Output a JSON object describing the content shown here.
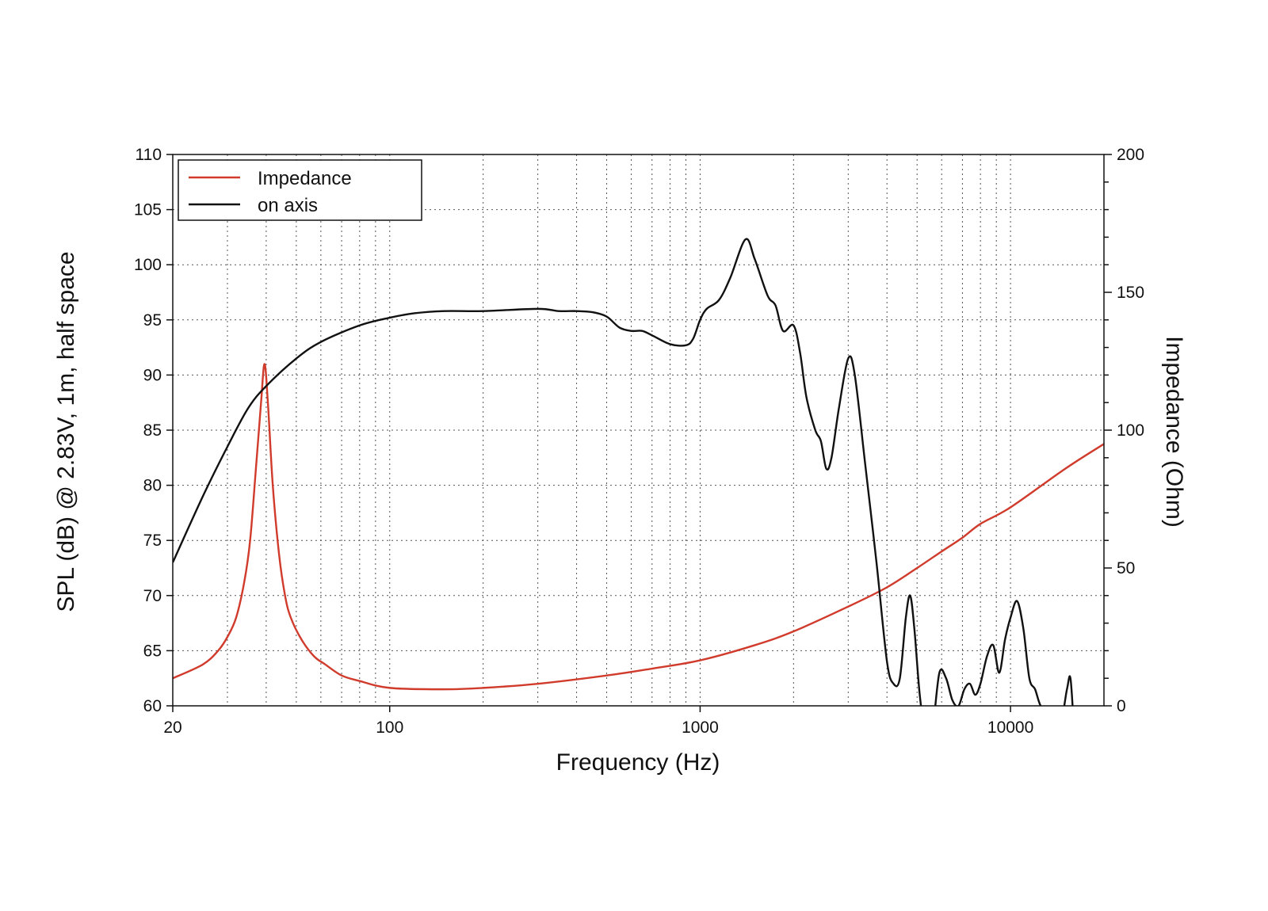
{
  "chart_data": {
    "type": "line",
    "title": "",
    "xlabel": "Frequency (Hz)",
    "ylabel_left": "SPL (dB) @ 2.83V, 1m, half space",
    "ylabel_right": "Impedance (Ohm)",
    "x_scale": "log",
    "xlim": [
      20,
      20000
    ],
    "ylim_left": [
      60,
      110
    ],
    "ylim_right": [
      0,
      200
    ],
    "x_tick_labels": [
      "20",
      "100",
      "1000",
      "10000"
    ],
    "x_tick_values": [
      20,
      100,
      1000,
      10000
    ],
    "y_left_tick_labels": [
      "60",
      "65",
      "70",
      "75",
      "80",
      "85",
      "90",
      "95",
      "100",
      "105",
      "110"
    ],
    "y_left_tick_values": [
      60,
      65,
      70,
      75,
      80,
      85,
      90,
      95,
      100,
      105,
      110
    ],
    "y_right_tick_labels": [
      "0",
      "50",
      "100",
      "150",
      "200"
    ],
    "y_right_tick_values": [
      0,
      50,
      100,
      150,
      200
    ],
    "grid": true,
    "legend_position": "top-left",
    "series": [
      {
        "name": "Impedance",
        "axis": "right",
        "color": "#d03b2c",
        "points": [
          [
            20,
            10.0
          ],
          [
            25,
            15.0
          ],
          [
            28,
            20.0
          ],
          [
            30,
            25.0
          ],
          [
            32,
            32.0
          ],
          [
            34,
            45.0
          ],
          [
            35.5,
            60.0
          ],
          [
            37,
            85.0
          ],
          [
            38.5,
            110.0
          ],
          [
            39.5,
            124.0
          ],
          [
            40.5,
            110.0
          ],
          [
            42,
            80.0
          ],
          [
            44,
            55.0
          ],
          [
            46,
            40.0
          ],
          [
            48,
            32.0
          ],
          [
            52,
            24.0
          ],
          [
            57,
            18.0
          ],
          [
            62,
            15.0
          ],
          [
            70,
            11.0
          ],
          [
            80,
            9.0
          ],
          [
            100,
            6.5
          ],
          [
            150,
            6.0
          ],
          [
            200,
            6.5
          ],
          [
            300,
            8.0
          ],
          [
            500,
            11.0
          ],
          [
            700,
            13.5
          ],
          [
            1000,
            16.5
          ],
          [
            1500,
            22.0
          ],
          [
            2000,
            27.0
          ],
          [
            3000,
            36.0
          ],
          [
            4000,
            43.0
          ],
          [
            5000,
            50.0
          ],
          [
            6000,
            56.0
          ],
          [
            7000,
            61.0
          ],
          [
            8000,
            66.0
          ],
          [
            10000,
            72.0
          ],
          [
            15000,
            86.0
          ],
          [
            20000,
            95.0
          ]
        ]
      },
      {
        "name": "on axis",
        "axis": "left",
        "color": "#111111",
        "points": [
          [
            20,
            73.0
          ],
          [
            25,
            79.0
          ],
          [
            30,
            83.5
          ],
          [
            35,
            87.0
          ],
          [
            40,
            89.0
          ],
          [
            50,
            91.5
          ],
          [
            60,
            93.0
          ],
          [
            80,
            94.5
          ],
          [
            100,
            95.2
          ],
          [
            120,
            95.6
          ],
          [
            150,
            95.8
          ],
          [
            200,
            95.8
          ],
          [
            300,
            96.0
          ],
          [
            350,
            95.8
          ],
          [
            400,
            95.8
          ],
          [
            450,
            95.7
          ],
          [
            500,
            95.3
          ],
          [
            550,
            94.3
          ],
          [
            600,
            94.0
          ],
          [
            650,
            94.0
          ],
          [
            700,
            93.6
          ],
          [
            800,
            92.8
          ],
          [
            900,
            92.7
          ],
          [
            950,
            93.3
          ],
          [
            1000,
            95.0
          ],
          [
            1050,
            96.0
          ],
          [
            1150,
            96.8
          ],
          [
            1250,
            98.8
          ],
          [
            1400,
            102.3
          ],
          [
            1500,
            100.5
          ],
          [
            1650,
            97.2
          ],
          [
            1750,
            96.3
          ],
          [
            1850,
            94.0
          ],
          [
            2000,
            94.5
          ],
          [
            2100,
            92.0
          ],
          [
            2200,
            88.0
          ],
          [
            2350,
            85.0
          ],
          [
            2450,
            84.0
          ],
          [
            2550,
            81.5
          ],
          [
            2650,
            82.5
          ],
          [
            2800,
            87.0
          ],
          [
            3000,
            91.5
          ],
          [
            3150,
            90.0
          ],
          [
            3400,
            82.0
          ],
          [
            3700,
            73.0
          ],
          [
            4000,
            64.0
          ],
          [
            4200,
            62.0
          ],
          [
            4400,
            62.5
          ],
          [
            4600,
            68.0
          ],
          [
            4750,
            70.0
          ],
          [
            4900,
            67.0
          ],
          [
            5100,
            61.0
          ],
          [
            5300,
            58.0
          ],
          [
            5600,
            58.0
          ],
          [
            5900,
            63.0
          ],
          [
            6200,
            62.5
          ],
          [
            6500,
            60.5
          ],
          [
            6800,
            60.0
          ],
          [
            7100,
            61.5
          ],
          [
            7400,
            62.0
          ],
          [
            7700,
            61.0
          ],
          [
            8000,
            62.0
          ],
          [
            8400,
            64.5
          ],
          [
            8800,
            65.5
          ],
          [
            9200,
            63.0
          ],
          [
            9600,
            66.0
          ],
          [
            10000,
            68.0
          ],
          [
            10500,
            69.5
          ],
          [
            11000,
            67.0
          ],
          [
            11500,
            62.5
          ],
          [
            12000,
            61.5
          ],
          [
            12500,
            60.0
          ],
          [
            13500,
            58.5
          ],
          [
            14500,
            58.5
          ],
          [
            15200,
            61.5
          ],
          [
            15600,
            62.5
          ],
          [
            16000,
            58.0
          ]
        ]
      }
    ]
  }
}
